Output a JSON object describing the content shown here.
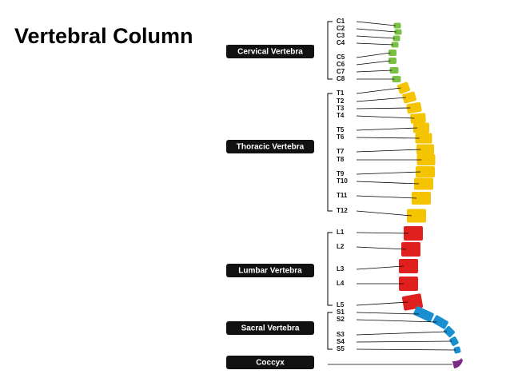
{
  "title": "Vertebral Column",
  "groups": [
    {
      "label": "Cervical Vertebra",
      "vertebrae": [
        "C1",
        "C2",
        "C3",
        "C4",
        "C5",
        "C6",
        "C7",
        "C8"
      ]
    },
    {
      "label": "Thoracic Vertebra",
      "vertebrae": [
        "T1",
        "T2",
        "T3",
        "T4",
        "T5",
        "T6",
        "T7",
        "T8",
        "T9",
        "T10",
        "T11",
        "T12"
      ]
    },
    {
      "label": "Lumbar Vertebra",
      "vertebrae": [
        "L1",
        "L2",
        "L3",
        "L4",
        "L5"
      ]
    },
    {
      "label": "Sacral Vertebra",
      "vertebrae": [
        "S1",
        "S2",
        "S3",
        "S4",
        "S5"
      ]
    },
    {
      "label": "Coccyx",
      "vertebrae": []
    }
  ]
}
